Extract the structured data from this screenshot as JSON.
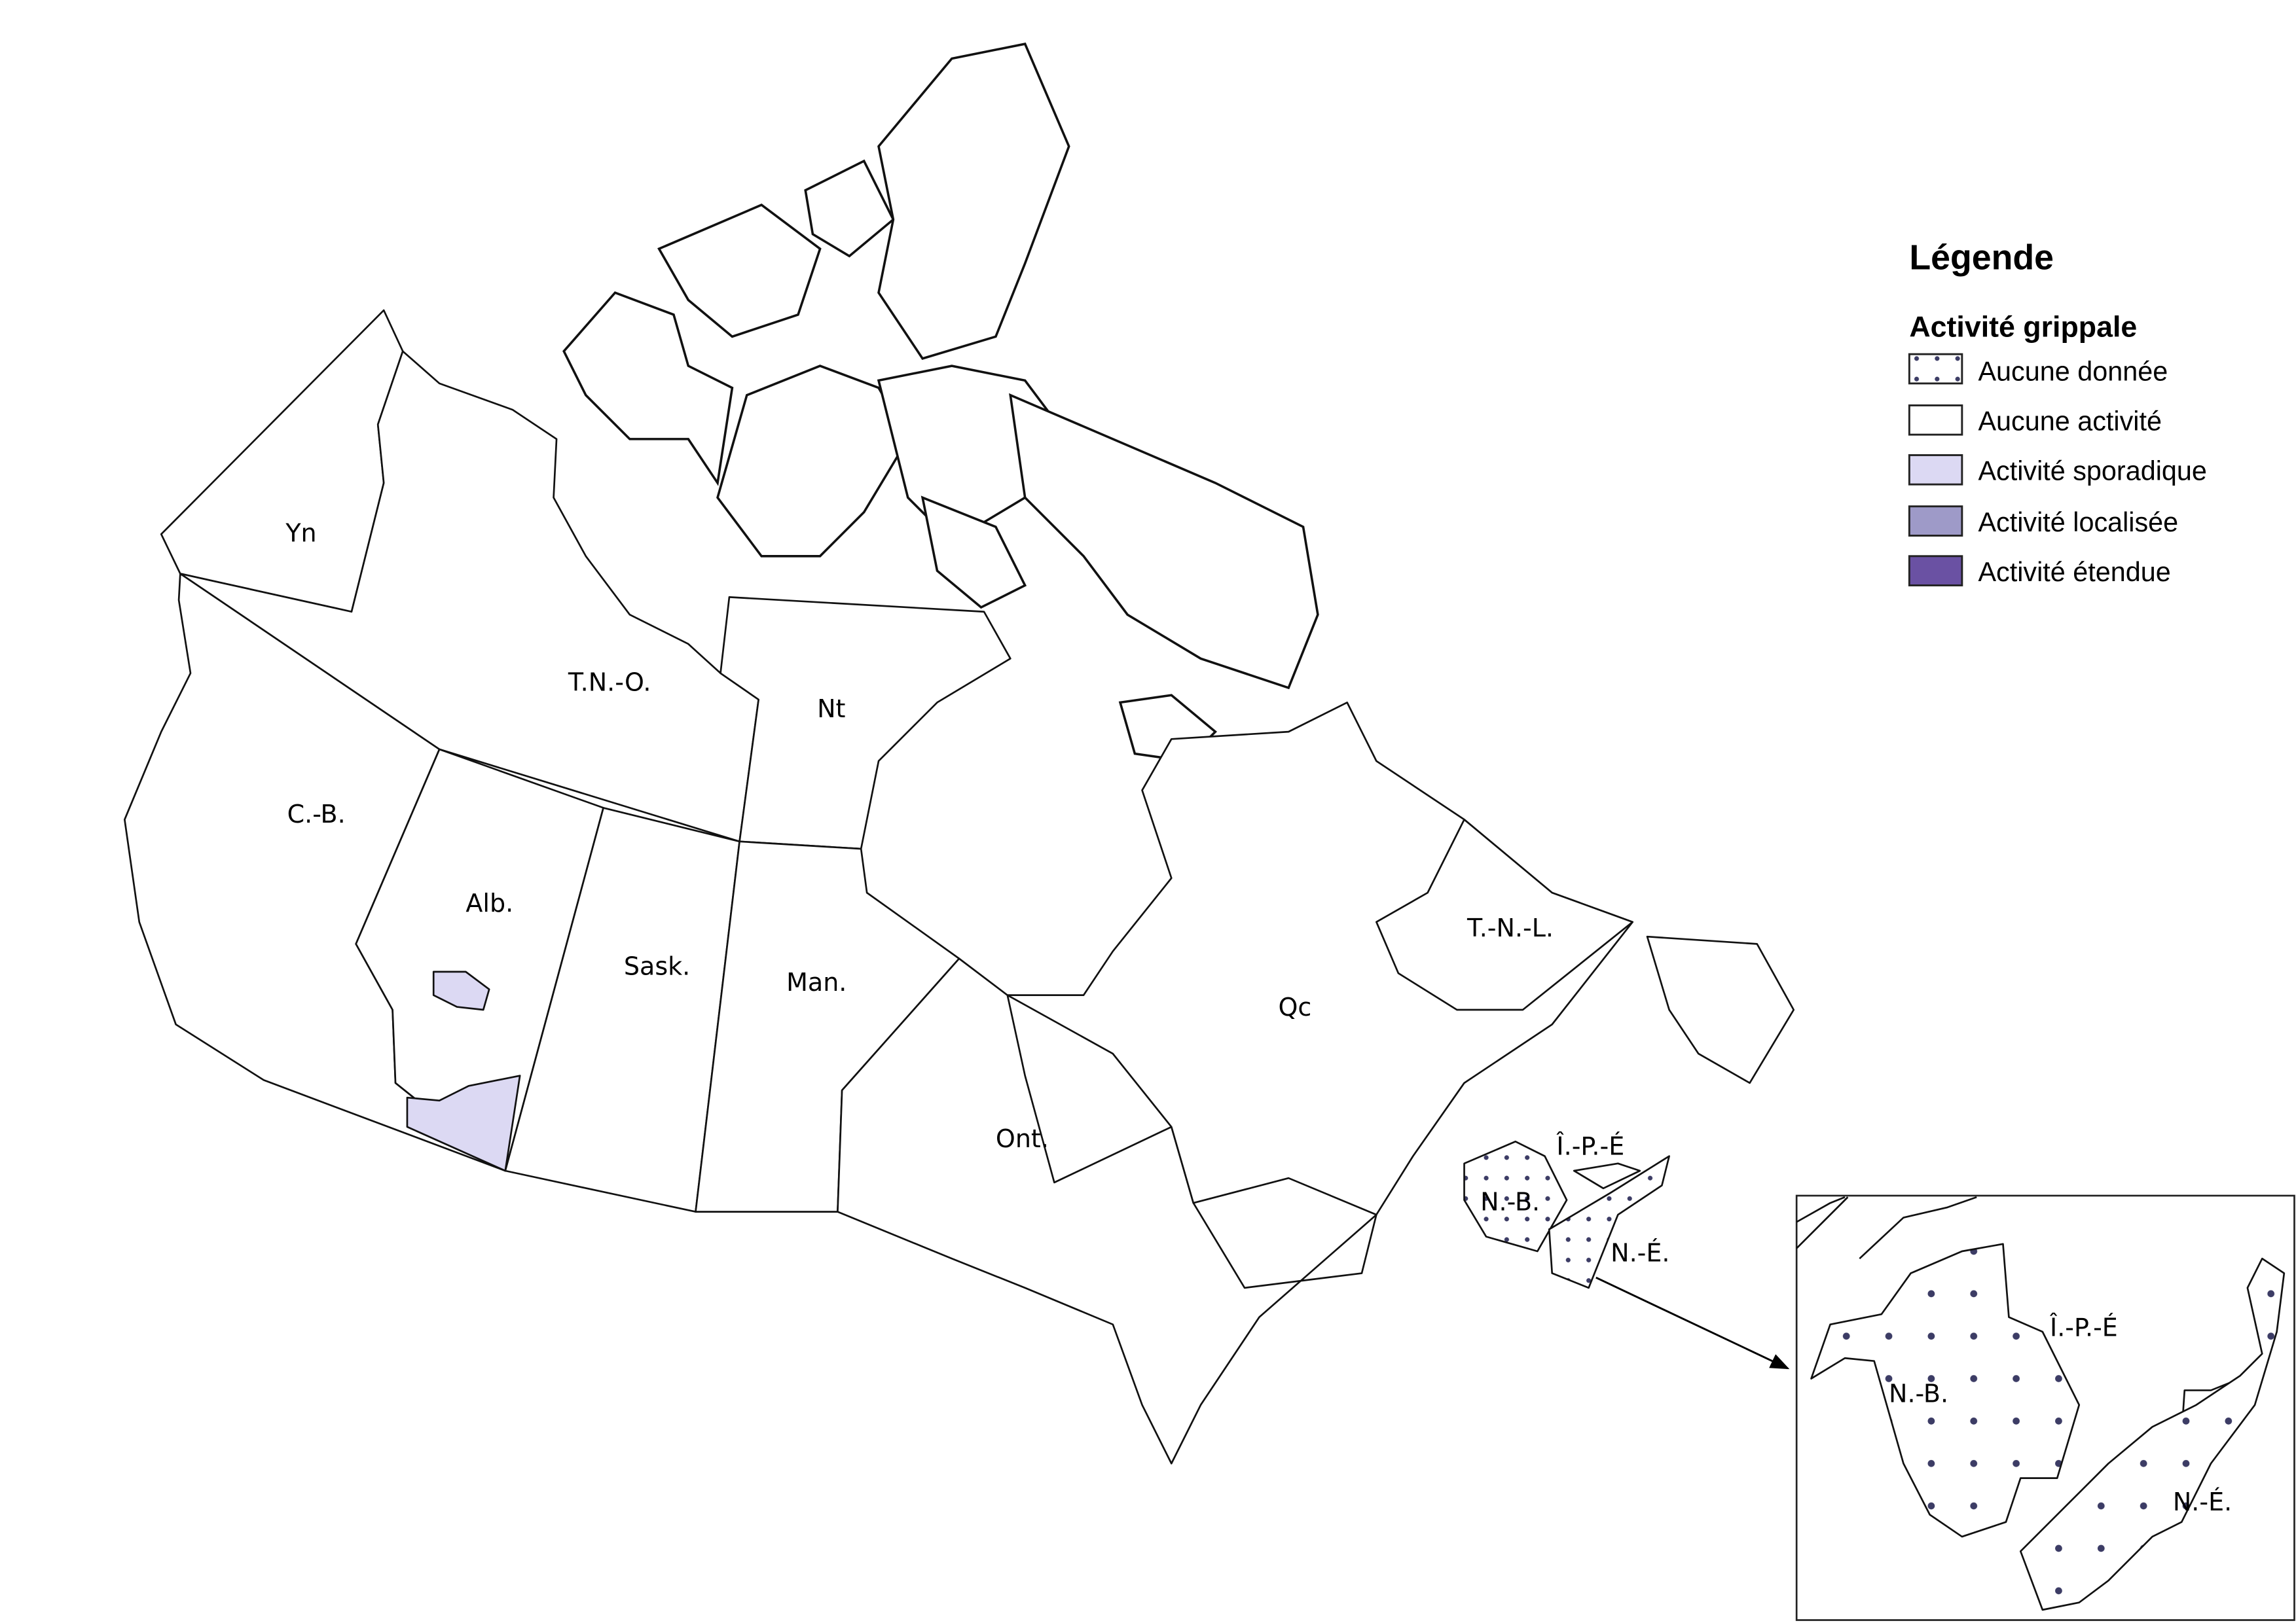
{
  "legend": {
    "title": "Légende",
    "subtitle": "Activité grippale",
    "items": [
      {
        "label": "Aucune donnée",
        "fill": "dots",
        "color": "#ffffff",
        "dot_color": "#1a1a4a"
      },
      {
        "label": "Aucune activité",
        "fill": "solid",
        "color": "#ffffff"
      },
      {
        "label": "Activité sporadique",
        "fill": "solid",
        "color": "#dcd9f3"
      },
      {
        "label": "Activité localisée",
        "fill": "solid",
        "color": "#9e9ac8"
      },
      {
        "label": "Activité étendue",
        "fill": "solid",
        "color": "#6a51a3"
      }
    ]
  },
  "regions": {
    "yn": {
      "label": "Yn",
      "status": "Aucune activité"
    },
    "tno": {
      "label": "T.N.-O.",
      "status": "Aucune activité"
    },
    "nt": {
      "label": "Nt",
      "status": "Aucune activité"
    },
    "cb": {
      "label": "C.-B.",
      "status": "Aucune activité"
    },
    "alb": {
      "label": "Alb.",
      "status": "Aucune activité / Activité sporadique (2 régions)"
    },
    "sask": {
      "label": "Sask.",
      "status": "Aucune activité"
    },
    "man": {
      "label": "Man.",
      "status": "Aucune activité"
    },
    "ont": {
      "label": "Ont.",
      "status": "Aucune activité"
    },
    "qc": {
      "label": "Qc",
      "status": "Aucune activité"
    },
    "tnl": {
      "label": "T.-N.-L.",
      "status": "Aucune activité"
    },
    "ipe": {
      "label": "Î.-P.-É",
      "status": "Aucune activité"
    },
    "nb": {
      "label": "N.-B.",
      "status": "Aucune donnée"
    },
    "ne": {
      "label": "N.-É.",
      "status": "Aucune donnée"
    }
  },
  "inset": {
    "ipe_label": "Î.-P.-É",
    "nb_label": "N.-B.",
    "ne_label": "N.-É."
  }
}
